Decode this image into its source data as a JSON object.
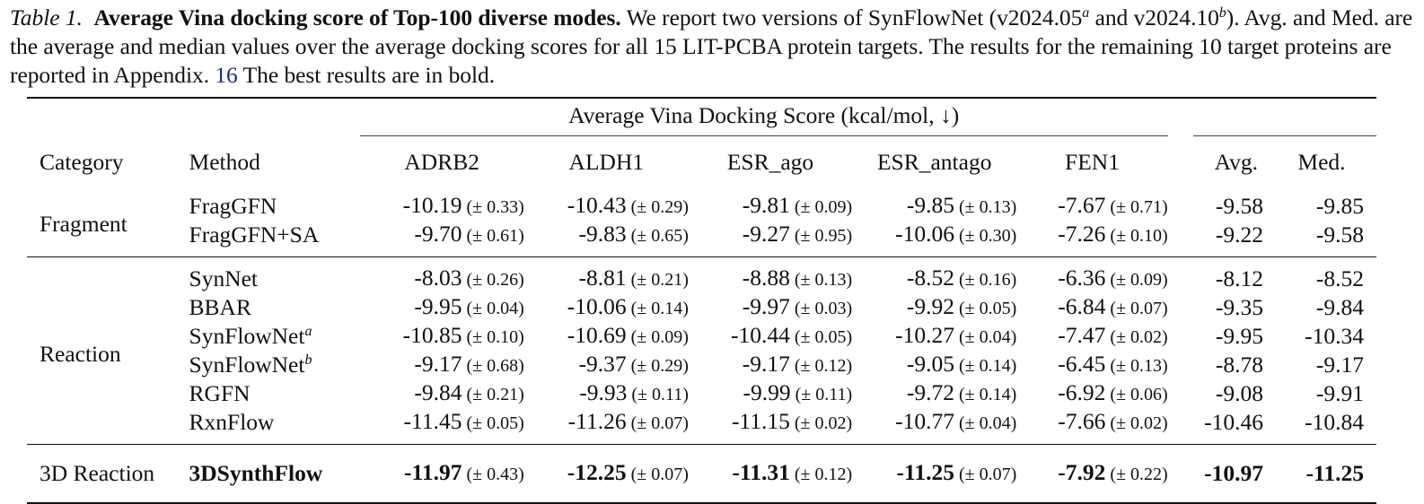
{
  "caption": {
    "label": "Table 1.",
    "title": "Average Vina docking score of Top-100 diverse modes.",
    "text_1": " We report two versions of SynFlowNet (v2024.05",
    "sup_a": "a",
    "text_2": " and v2024.10",
    "sup_b": "b",
    "text_3": "). Avg. and Med. are the average and median values over the average docking scores for all 15 LIT-PCBA protein targets. The results for the remaining 10 target proteins are reported in Appendix. ",
    "appendix_ref": "16",
    "text_4": " The best results are in bold."
  },
  "table": {
    "group_header": "Average Vina Docking Score (kcal/mol, ↓)",
    "headers": {
      "category": "Category",
      "method": "Method",
      "adrb2": "ADRB2",
      "aldh1": "ALDH1",
      "esr_ago": "ESR_ago",
      "esr_antago": "ESR_antago",
      "fen1": "FEN1",
      "avg": "Avg.",
      "med": "Med."
    },
    "groups": [
      {
        "category": "Fragment",
        "rows": [
          {
            "method": "FragGFN",
            "sup": "",
            "scores": [
              [
                "-10.19",
                "(± 0.33)"
              ],
              [
                "-10.43",
                "(± 0.29)"
              ],
              [
                "-9.81",
                "(± 0.09)"
              ],
              [
                "-9.85",
                "(± 0.13)"
              ],
              [
                "-7.67",
                "(± 0.71)"
              ]
            ],
            "avg": "-9.58",
            "med": "-9.85"
          },
          {
            "method": "FragGFN+SA",
            "sup": "",
            "scores": [
              [
                "-9.70",
                "(± 0.61)"
              ],
              [
                "-9.83",
                "(± 0.65)"
              ],
              [
                "-9.27",
                "(± 0.95)"
              ],
              [
                "-10.06",
                "(± 0.30)"
              ],
              [
                "-7.26",
                "(± 0.10)"
              ]
            ],
            "avg": "-9.22",
            "med": "-9.58"
          }
        ]
      },
      {
        "category": "Reaction",
        "rows": [
          {
            "method": "SynNet",
            "sup": "",
            "scores": [
              [
                "-8.03",
                "(± 0.26)"
              ],
              [
                "-8.81",
                "(± 0.21)"
              ],
              [
                "-8.88",
                "(± 0.13)"
              ],
              [
                "-8.52",
                "(± 0.16)"
              ],
              [
                "-6.36",
                "(± 0.09)"
              ]
            ],
            "avg": "-8.12",
            "med": "-8.52"
          },
          {
            "method": "BBAR",
            "sup": "",
            "scores": [
              [
                "-9.95",
                "(± 0.04)"
              ],
              [
                "-10.06",
                "(± 0.14)"
              ],
              [
                "-9.97",
                "(± 0.03)"
              ],
              [
                "-9.92",
                "(± 0.05)"
              ],
              [
                "-6.84",
                "(± 0.07)"
              ]
            ],
            "avg": "-9.35",
            "med": "-9.84"
          },
          {
            "method": "SynFlowNet",
            "sup": "a",
            "scores": [
              [
                "-10.85",
                "(± 0.10)"
              ],
              [
                "-10.69",
                "(± 0.09)"
              ],
              [
                "-10.44",
                "(± 0.05)"
              ],
              [
                "-10.27",
                "(± 0.04)"
              ],
              [
                "-7.47",
                "(± 0.02)"
              ]
            ],
            "avg": "-9.95",
            "med": "-10.34"
          },
          {
            "method": "SynFlowNet",
            "sup": "b",
            "scores": [
              [
                "-9.17",
                "(± 0.68)"
              ],
              [
                "-9.37",
                "(± 0.29)"
              ],
              [
                "-9.17",
                "(± 0.12)"
              ],
              [
                "-9.05",
                "(± 0.14)"
              ],
              [
                "-6.45",
                "(± 0.13)"
              ]
            ],
            "avg": "-8.78",
            "med": "-9.17"
          },
          {
            "method": "RGFN",
            "sup": "",
            "scores": [
              [
                "-9.84",
                "(± 0.21)"
              ],
              [
                "-9.93",
                "(± 0.11)"
              ],
              [
                "-9.99",
                "(± 0.11)"
              ],
              [
                "-9.72",
                "(± 0.14)"
              ],
              [
                "-6.92",
                "(± 0.06)"
              ]
            ],
            "avg": "-9.08",
            "med": "-9.91"
          },
          {
            "method": "RxnFlow",
            "sup": "",
            "scores": [
              [
                "-11.45",
                "(± 0.05)"
              ],
              [
                "-11.26",
                "(± 0.07)"
              ],
              [
                "-11.15",
                "(± 0.02)"
              ],
              [
                "-10.77",
                "(± 0.04)"
              ],
              [
                "-7.66",
                "(± 0.02)"
              ]
            ],
            "avg": "-10.46",
            "med": "-10.84"
          }
        ]
      },
      {
        "category": "3D Reaction",
        "rows": [
          {
            "method": "3DSynthFlow",
            "sup": "",
            "bold": true,
            "scores": [
              [
                "-11.97",
                "(± 0.43)"
              ],
              [
                "-12.25",
                "(± 0.07)"
              ],
              [
                "-11.31",
                "(± 0.12)"
              ],
              [
                "-11.25",
                "(± 0.07)"
              ],
              [
                "-7.92",
                "(± 0.22)"
              ]
            ],
            "avg": "-10.97",
            "med": "-11.25"
          }
        ]
      }
    ]
  }
}
